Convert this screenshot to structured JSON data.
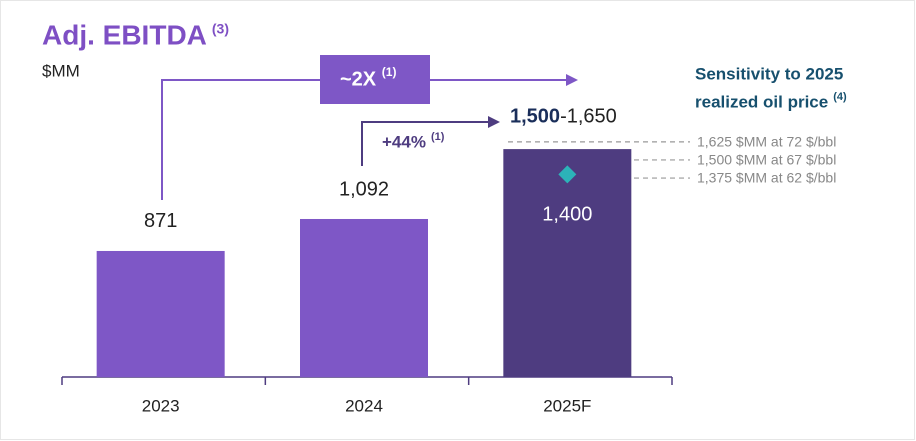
{
  "chart_data": {
    "type": "bar",
    "title": "Adj. EBITDA",
    "title_note": "(3)",
    "subtitle": "$MM",
    "categories": [
      "2023",
      "2024",
      "2025F"
    ],
    "values": [
      871,
      1092,
      1575
    ],
    "value_labels": [
      "871",
      "1,092",
      null
    ],
    "colors": [
      "#7e57c6",
      "#7e57c6",
      "#4e3c80"
    ],
    "marker": {
      "values": [
        null,
        null,
        1400
      ],
      "value_labels": [
        null,
        null,
        "1,400"
      ],
      "color": "#2cb3b8"
    },
    "range_label": {
      "low": "1,500",
      "high": "-1,650"
    },
    "annotations": [
      {
        "text": "~2X",
        "note": "(1)"
      },
      {
        "text": "+44%",
        "note": "(1)"
      }
    ],
    "sensitivity": {
      "title": [
        "Sensitivity to 2025",
        "realized oil price"
      ],
      "note": "(4)",
      "lines": [
        {
          "value": 1625,
          "label": "1,625 $MM at 72 $/bbl"
        },
        {
          "value": 1500,
          "label": "1,500 $MM at 67 $/bbl"
        },
        {
          "value": 1375,
          "label": "1,375 $MM at 62 $/bbl"
        }
      ]
    }
  }
}
